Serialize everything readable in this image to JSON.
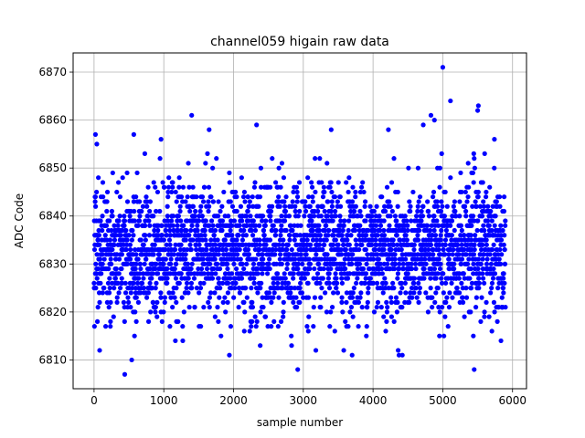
{
  "chart_data": {
    "type": "scatter",
    "title": "channel059 higain raw data",
    "xlabel": "sample number",
    "ylabel": "ADC Code",
    "xlim": [
      -300,
      6200
    ],
    "ylim": [
      6804,
      6874
    ],
    "xticks": [
      0,
      1000,
      2000,
      3000,
      4000,
      5000,
      6000
    ],
    "yticks": [
      6810,
      6820,
      6830,
      6840,
      6850,
      6860,
      6870
    ],
    "grid": true,
    "marker_color": "#0000ff",
    "series": [
      {
        "n_samples": 5900,
        "baseline_approx": 6833,
        "spread_band_approx": [
          6815,
          6850
        ],
        "outliers": [
          {
            "x": 5000,
            "y": 6871
          },
          {
            "x": 5110,
            "y": 6864
          },
          {
            "x": 5510,
            "y": 6863
          },
          {
            "x": 5500,
            "y": 6862
          },
          {
            "x": 1400,
            "y": 6861
          },
          {
            "x": 4830,
            "y": 6861
          },
          {
            "x": 4880,
            "y": 6860
          },
          {
            "x": 2330,
            "y": 6859
          },
          {
            "x": 4720,
            "y": 6859
          },
          {
            "x": 1650,
            "y": 6858
          },
          {
            "x": 3400,
            "y": 6858
          },
          {
            "x": 4220,
            "y": 6858
          },
          {
            "x": 20,
            "y": 6857
          },
          {
            "x": 570,
            "y": 6857
          },
          {
            "x": 40,
            "y": 6855
          },
          {
            "x": 5740,
            "y": 6856
          },
          {
            "x": 960,
            "y": 6856
          },
          {
            "x": 80,
            "y": 6812
          },
          {
            "x": 3180,
            "y": 6812
          },
          {
            "x": 3580,
            "y": 6812
          },
          {
            "x": 4420,
            "y": 6811
          },
          {
            "x": 1940,
            "y": 6811
          },
          {
            "x": 540,
            "y": 6810
          },
          {
            "x": 4360,
            "y": 6812
          },
          {
            "x": 2920,
            "y": 6808
          },
          {
            "x": 5450,
            "y": 6808
          },
          {
            "x": 440,
            "y": 6807
          }
        ]
      }
    ]
  }
}
